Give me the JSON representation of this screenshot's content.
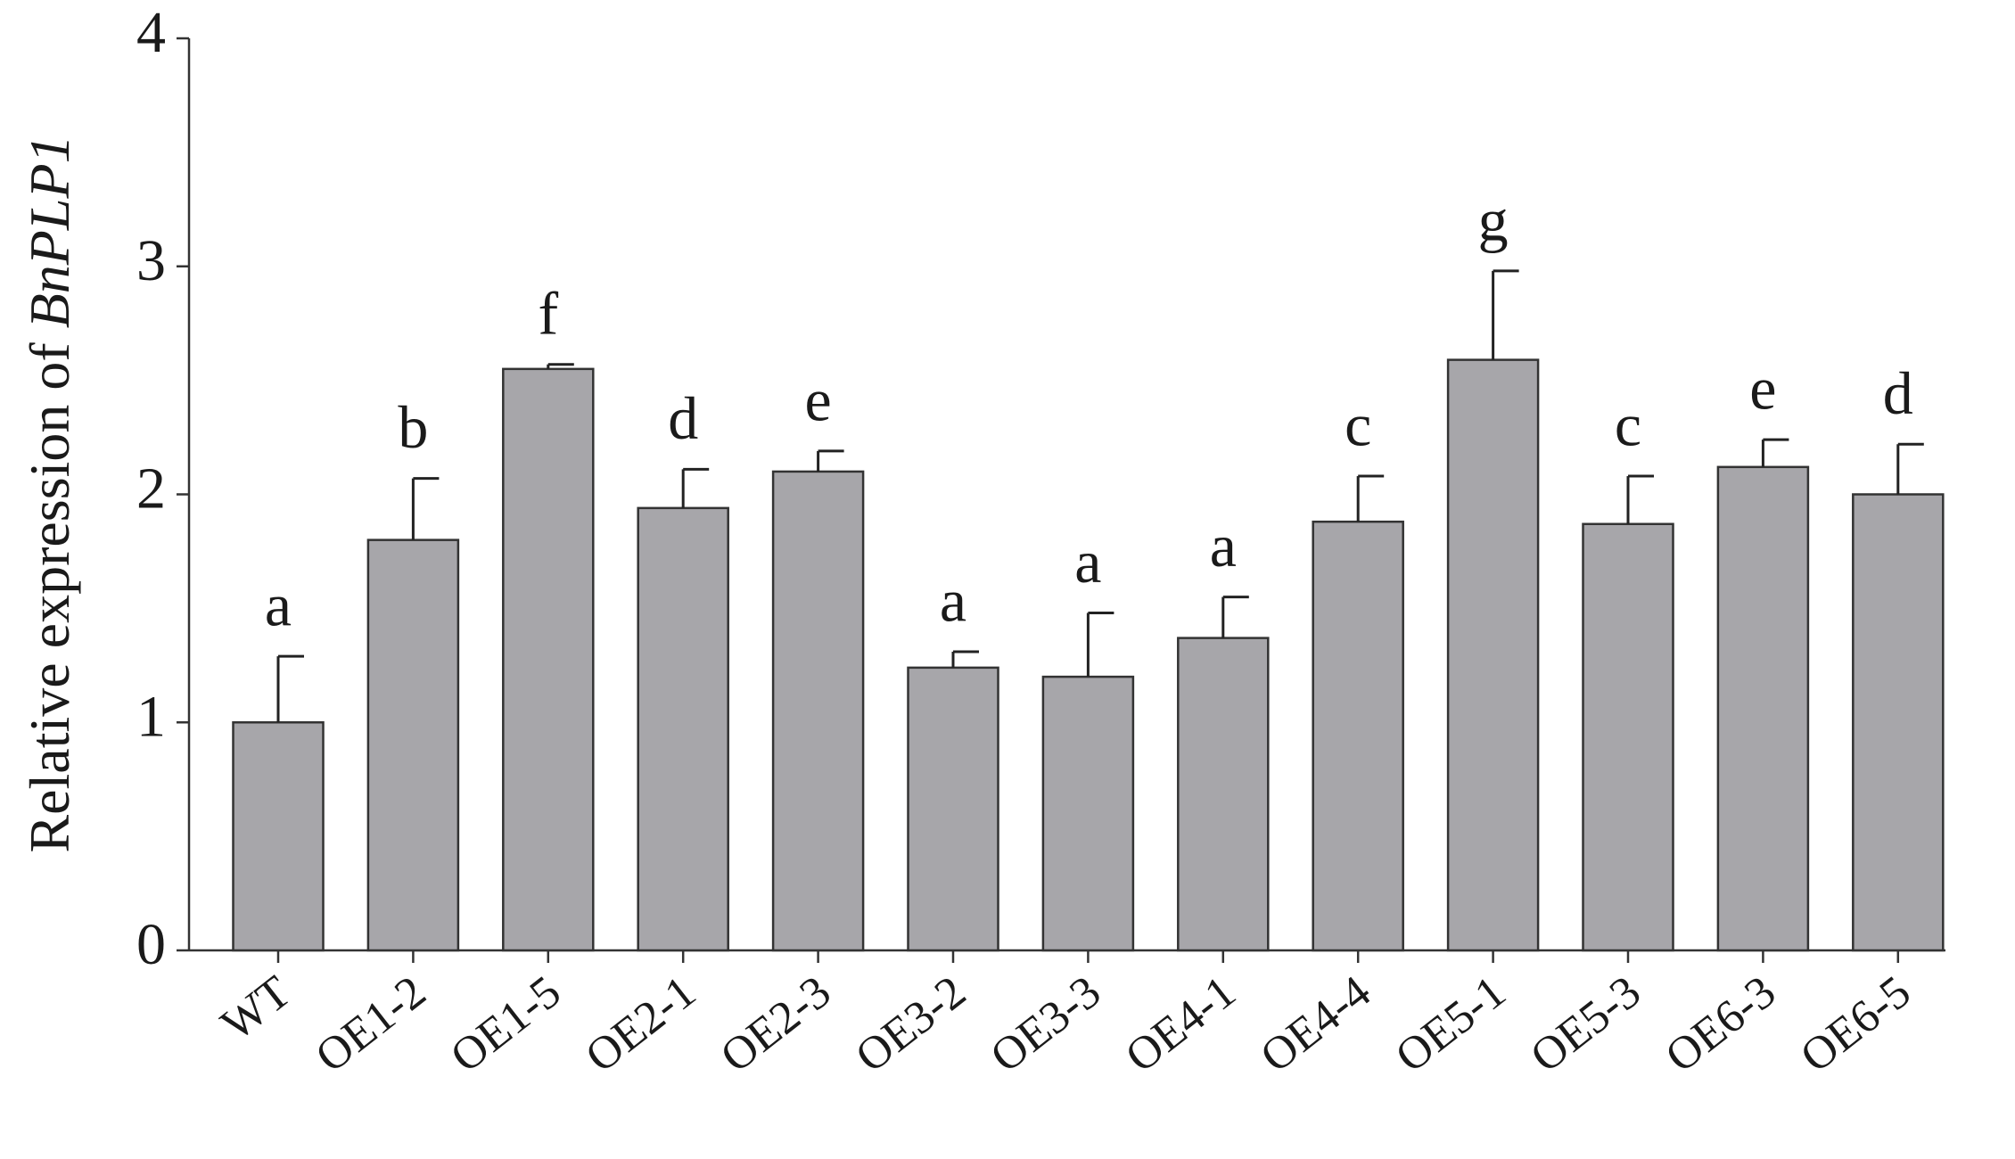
{
  "chart_data": {
    "type": "bar",
    "y_label": [
      "Relative expression of ",
      "BnPLP1"
    ],
    "categories": [
      "WT",
      "OE1-2",
      "OE1-5",
      "OE2-1",
      "OE2-3",
      "OE3-2",
      "OE3-3",
      "OE4-1",
      "OE4-4",
      "OE5-1",
      "OE5-3",
      "OE6-3",
      "OE6-5"
    ],
    "values": [
      1.0,
      1.8,
      2.55,
      1.94,
      2.1,
      1.24,
      1.2,
      1.37,
      1.88,
      2.59,
      1.87,
      2.12,
      2.0
    ],
    "errors": [
      0.29,
      0.27,
      0.02,
      0.17,
      0.09,
      0.07,
      0.28,
      0.18,
      0.2,
      0.39,
      0.21,
      0.12,
      0.22
    ],
    "annotations": [
      "a",
      "b",
      "f",
      "d",
      "e",
      "a",
      "a",
      "a",
      "c",
      "g",
      "c",
      "e",
      "d"
    ],
    "color": "#a7a6aa",
    "ylim": [
      0,
      4
    ],
    "yticks": [
      0,
      1,
      2,
      3,
      4
    ],
    "grid": false
  }
}
